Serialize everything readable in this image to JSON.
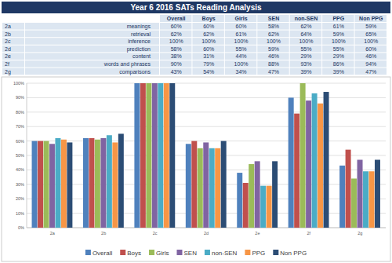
{
  "header": {
    "title": "Year 6 2016 SATs Reading Analysis"
  },
  "table": {
    "columns": [
      "Overall",
      "Boys",
      "Girls",
      "SEN",
      "non-SEN",
      "PPG",
      "Non PPG"
    ],
    "rows": [
      [
        "2a",
        "meanings",
        "60%",
        "60%",
        "60%",
        "58%",
        "62%",
        "61%",
        "59%"
      ],
      [
        "2b",
        "retrieval",
        "62%",
        "62%",
        "61%",
        "62%",
        "64%",
        "59%",
        "65%"
      ],
      [
        "2c",
        "inference",
        "100%",
        "100%",
        "100%",
        "100%",
        "100%",
        "100%",
        "100%"
      ],
      [
        "2d",
        "prediction",
        "58%",
        "60%",
        "55%",
        "59%",
        "55%",
        "55%",
        "60%"
      ],
      [
        "2e",
        "content",
        "38%",
        "31%",
        "44%",
        "46%",
        "29%",
        "29%",
        "46%"
      ],
      [
        "2f",
        "words and phrases",
        "90%",
        "79%",
        "100%",
        "88%",
        "93%",
        "86%",
        "94%"
      ],
      [
        "2g",
        "comparisons",
        "43%",
        "54%",
        "34%",
        "47%",
        "39%",
        "39%",
        "47%"
      ]
    ]
  },
  "chart_data": {
    "type": "bar",
    "categories": [
      "2a",
      "2b",
      "2c",
      "2d",
      "2e",
      "2f",
      "2g"
    ],
    "series": [
      {
        "name": "Overall",
        "color": "#4f81bd",
        "values": [
          60,
          62,
          100,
          58,
          38,
          90,
          43
        ]
      },
      {
        "name": "Boys",
        "color": "#c0504d",
        "values": [
          60,
          62,
          100,
          60,
          31,
          79,
          54
        ]
      },
      {
        "name": "Girls",
        "color": "#9bbb59",
        "values": [
          60,
          61,
          100,
          55,
          44,
          100,
          34
        ]
      },
      {
        "name": "SEN",
        "color": "#8064a2",
        "values": [
          58,
          62,
          100,
          59,
          46,
          88,
          47
        ]
      },
      {
        "name": "non-SEN",
        "color": "#4bacc6",
        "values": [
          62,
          64,
          100,
          55,
          29,
          93,
          39
        ]
      },
      {
        "name": "PPG",
        "color": "#f79646",
        "values": [
          61,
          59,
          100,
          55,
          29,
          86,
          39
        ]
      },
      {
        "name": "Non PPG",
        "color": "#2c4d75",
        "values": [
          59,
          65,
          100,
          60,
          46,
          94,
          47
        ]
      }
    ],
    "ylim": [
      0,
      100
    ],
    "yticks": [
      {
        "value": 0,
        "label": "0%"
      },
      {
        "value": 10,
        "label": "10%"
      },
      {
        "value": 20,
        "label": "20%"
      },
      {
        "value": 30,
        "label": "30%"
      },
      {
        "value": 40,
        "label": "40%"
      },
      {
        "value": 50,
        "label": "50%"
      },
      {
        "value": 60,
        "label": "60%"
      },
      {
        "value": 70,
        "label": "70%"
      },
      {
        "value": 80,
        "label": "80%"
      },
      {
        "value": 90,
        "label": "90%"
      },
      {
        "value": 100,
        "label": "100%"
      }
    ],
    "grid": true,
    "legend": "bottom"
  }
}
